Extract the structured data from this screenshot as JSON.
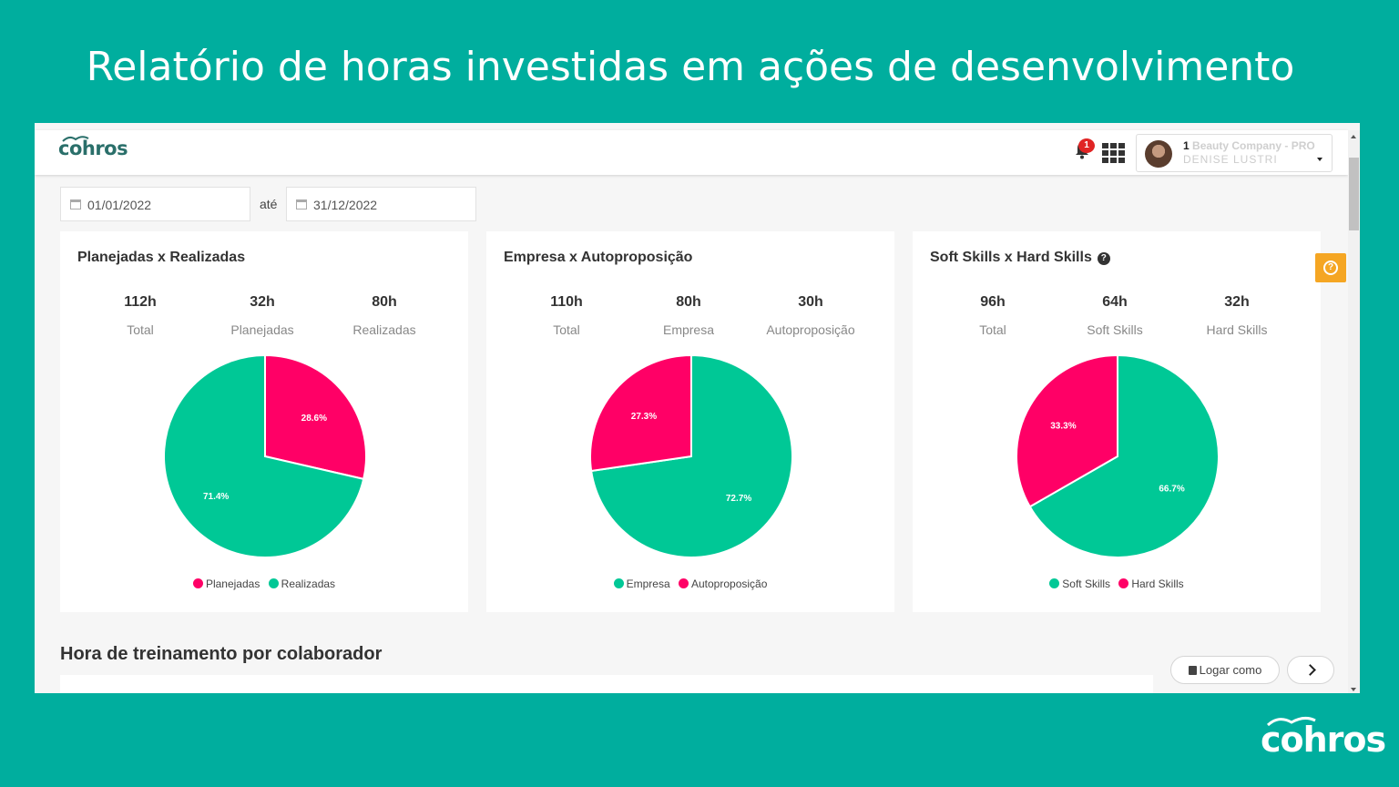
{
  "headline": "Relatório de horas investidas em ações de desenvolvimento",
  "brand": {
    "name": "cohros",
    "footer_logo": "cohros"
  },
  "header": {
    "notification_count": "1",
    "company_prefix": "1",
    "company_name": "Beauty Company - PRO",
    "user_name": "DENISE LUSTRI"
  },
  "filters": {
    "start_date": "01/01/2022",
    "separator": "até",
    "end_date": "31/12/2022"
  },
  "cards": [
    {
      "title": "Planejadas x Realizadas",
      "stats": [
        {
          "value": "112h",
          "label": "Total"
        },
        {
          "value": "32h",
          "label": "Planejadas"
        },
        {
          "value": "80h",
          "label": "Realizadas"
        }
      ],
      "legend": [
        "Planejadas",
        "Realizadas"
      ]
    },
    {
      "title": "Empresa x Autoproposição",
      "stats": [
        {
          "value": "110h",
          "label": "Total"
        },
        {
          "value": "80h",
          "label": "Empresa"
        },
        {
          "value": "30h",
          "label": "Autoproposição"
        }
      ],
      "legend": [
        "Empresa",
        "Autoproposição"
      ]
    },
    {
      "title": "Soft Skills x Hard Skills",
      "stats": [
        {
          "value": "96h",
          "label": "Total"
        },
        {
          "value": "64h",
          "label": "Soft Skills"
        },
        {
          "value": "32h",
          "label": "Hard Skills"
        }
      ],
      "legend": [
        "Soft Skills",
        "Hard Skills"
      ]
    }
  ],
  "section_title": "Hora de treinamento por colaborador",
  "buttons": {
    "login_as": "Logar como"
  },
  "colors": {
    "pink": "#ff0066",
    "green": "#00c896",
    "teal": "#00ae9e",
    "orange": "#f5a623"
  },
  "chart_data": [
    {
      "type": "pie",
      "slices": [
        {
          "name": "Planejadas",
          "value": 28.6,
          "label": "28.6%",
          "color": "#ff0066"
        },
        {
          "name": "Realizadas",
          "value": 71.4,
          "label": "71.4%",
          "color": "#00c896"
        }
      ]
    },
    {
      "type": "pie",
      "slices": [
        {
          "name": "Empresa",
          "value": 72.7,
          "label": "72.7%",
          "color": "#00c896"
        },
        {
          "name": "Autoproposição",
          "value": 27.3,
          "label": "27.3%",
          "color": "#ff0066"
        }
      ]
    },
    {
      "type": "pie",
      "slices": [
        {
          "name": "Soft Skills",
          "value": 66.7,
          "label": "66.7%",
          "color": "#00c896"
        },
        {
          "name": "Hard Skills",
          "value": 33.3,
          "label": "33.3%",
          "color": "#ff0066"
        }
      ]
    }
  ]
}
